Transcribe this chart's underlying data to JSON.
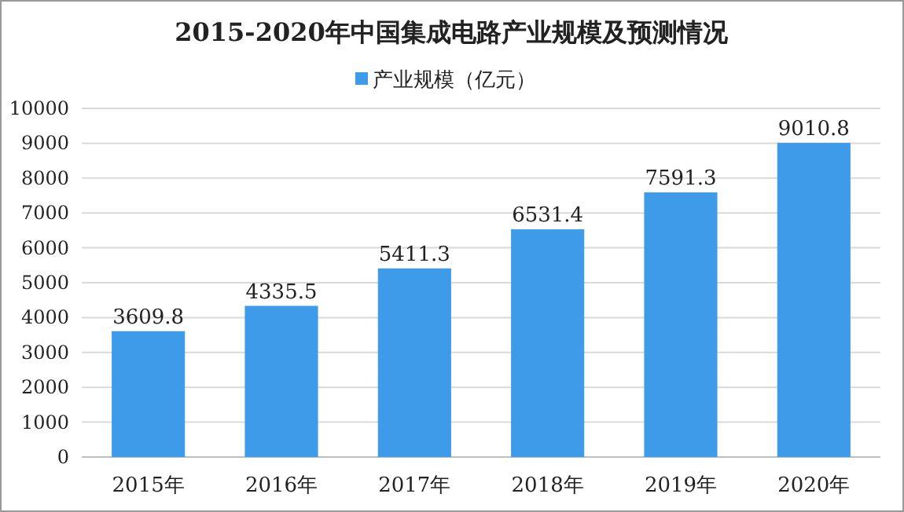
{
  "chart_data": {
    "type": "bar",
    "title": "2015-2020年中国集成电路产业规模及预测情况",
    "categories": [
      "2015年",
      "2016年",
      "2017年",
      "2018年",
      "2019年",
      "2020年"
    ],
    "series": [
      {
        "name": "产业规模（亿元）",
        "color": "#3d9be9",
        "values": [
          3609.8,
          4335.5,
          5411.3,
          6531.4,
          7591.3,
          9010.8
        ]
      }
    ],
    "ylim": [
      0,
      10000
    ],
    "yticks": [
      0,
      1000,
      2000,
      3000,
      4000,
      5000,
      6000,
      7000,
      8000,
      9000,
      10000
    ],
    "grid": "y",
    "legend": "top",
    "data_labels": true
  }
}
